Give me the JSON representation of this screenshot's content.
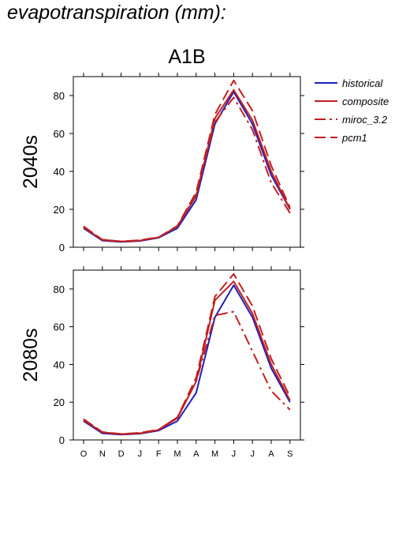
{
  "title": "evapotranspiration (mm):",
  "chart_data": {
    "type": "line",
    "scenario": "A1B",
    "months": [
      "O",
      "N",
      "D",
      "J",
      "F",
      "M",
      "A",
      "M",
      "J",
      "J",
      "A",
      "S"
    ],
    "ylim": [
      0,
      90
    ],
    "yticks": [
      0,
      20,
      40,
      60,
      80
    ],
    "legend": [
      {
        "name": "historical",
        "color": "#1f1fbf",
        "dash": "solid"
      },
      {
        "name": "composite",
        "color": "#c02020",
        "dash": "solid"
      },
      {
        "name": "miroc_3.2",
        "color": "#c02020",
        "dash": "dashdot"
      },
      {
        "name": "pcm1",
        "color": "#c02020",
        "dash": "dashed"
      }
    ],
    "panels": [
      {
        "label": "2040s",
        "series": [
          {
            "name": "historical",
            "values": [
              10,
              3.5,
              2.8,
              3.3,
              5,
              10,
              25,
              65,
              82,
              65,
              38,
              20
            ]
          },
          {
            "name": "composite",
            "values": [
              10.5,
              3.8,
              3.0,
              3.5,
              5.2,
              11,
              27,
              68,
              83,
              67,
              40,
              20
            ]
          },
          {
            "name": "miroc_3.2",
            "values": [
              10.8,
              4,
              3.0,
              3.6,
              5.3,
              11,
              28,
              66,
              79,
              62,
              34,
              18
            ]
          },
          {
            "name": "pcm1",
            "values": [
              11,
              4,
              3.1,
              3.7,
              5.3,
              11.3,
              29,
              70,
              88,
              72,
              43,
              21
            ]
          }
        ]
      },
      {
        "label": "2080s",
        "series": [
          {
            "name": "historical",
            "values": [
              10,
              3.5,
              2.8,
              3.3,
              5,
              10,
              25,
              65,
              82,
              65,
              38,
              20
            ]
          },
          {
            "name": "composite",
            "values": [
              10.5,
              4,
              3.0,
              3.5,
              5.3,
              11.5,
              31,
              74,
              84,
              67,
              40,
              21
            ]
          },
          {
            "name": "miroc_3.2",
            "values": [
              11,
              4,
              3.1,
              3.7,
              5.5,
              12,
              31,
              66,
              68,
              47,
              26,
              16
            ]
          },
          {
            "name": "pcm1",
            "values": [
              11,
              4.2,
              3.2,
              3.8,
              5.5,
              12,
              33,
              76,
              88,
              71,
              43,
              23
            ]
          }
        ]
      }
    ]
  }
}
